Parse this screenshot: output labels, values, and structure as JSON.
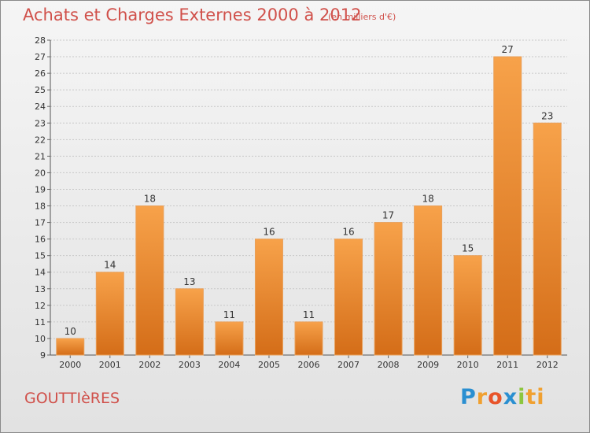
{
  "chart_data": {
    "type": "bar",
    "title": "Achats et Charges Externes 2000 à 2012",
    "subtitle": "(en milliers d'€)",
    "categories": [
      "2000",
      "2001",
      "2002",
      "2003",
      "2004",
      "2005",
      "2006",
      "2007",
      "2008",
      "2009",
      "2010",
      "2011",
      "2012"
    ],
    "values": [
      10,
      14,
      18,
      13,
      11,
      16,
      11,
      16,
      17,
      18,
      15,
      27,
      23
    ],
    "ylim": [
      9,
      28
    ],
    "yticks": [
      9,
      10,
      11,
      12,
      13,
      14,
      15,
      16,
      17,
      18,
      19,
      20,
      21,
      22,
      23,
      24,
      25,
      26,
      27,
      28
    ],
    "xlabel": "",
    "ylabel": "",
    "grid": true,
    "bar_color": "#f0933a",
    "bar_color_dark": "#d9731e",
    "grid_color": "#c8c8c8"
  },
  "footer": {
    "commune": "GOUTTIèRES",
    "logo": [
      "P",
      "r",
      "o",
      "x",
      "i",
      "ti"
    ]
  },
  "colors": {
    "title": "#d0504a",
    "logo": [
      "#2a8fd1",
      "#f0a030",
      "#e8542a",
      "#2a8fd1",
      "#8cc63e",
      "#f0a030"
    ]
  }
}
